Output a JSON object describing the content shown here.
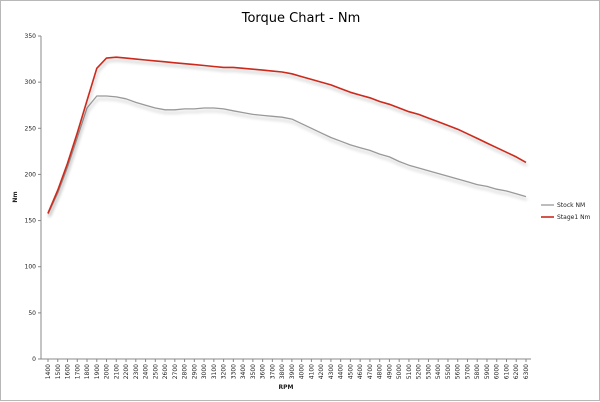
{
  "chart_data": {
    "type": "line",
    "title": "Torque Chart - Nm",
    "xlabel": "RPM",
    "ylabel": "Nm",
    "ylim": [
      0,
      350
    ],
    "yticks": [
      0,
      50,
      100,
      150,
      200,
      250,
      300,
      350
    ],
    "grid": false,
    "legend": "right",
    "x": [
      1400,
      1500,
      1600,
      1700,
      1800,
      1900,
      2000,
      2100,
      2200,
      2300,
      2400,
      2500,
      2600,
      2700,
      2800,
      2900,
      3000,
      3100,
      3200,
      3300,
      3400,
      3500,
      3600,
      3700,
      3800,
      3900,
      4000,
      4100,
      4200,
      4300,
      4400,
      4500,
      4600,
      4700,
      4800,
      4900,
      5000,
      5100,
      5200,
      5300,
      5400,
      5500,
      5600,
      5700,
      5800,
      5900,
      6000,
      6100,
      6200,
      6300
    ],
    "series": [
      {
        "name": "Stock NM",
        "color": "#999999",
        "values": [
          157,
          180,
          208,
          240,
          272,
          285,
          285,
          284,
          282,
          278,
          275,
          272,
          270,
          270,
          271,
          271,
          272,
          272,
          271,
          269,
          267,
          265,
          264,
          263,
          262,
          260,
          255,
          250,
          245,
          240,
          236,
          232,
          229,
          226,
          222,
          219,
          214,
          210,
          207,
          204,
          201,
          198,
          195,
          192,
          189,
          187,
          184,
          182,
          179,
          176
        ]
      },
      {
        "name": "Stage1 Nm",
        "color": "#cc2a1c",
        "values": [
          158,
          183,
          212,
          245,
          280,
          315,
          326,
          327,
          326,
          325,
          324,
          323,
          322,
          321,
          320,
          319,
          318,
          317,
          316,
          316,
          315,
          314,
          313,
          312,
          311,
          309,
          306,
          303,
          300,
          297,
          293,
          289,
          286,
          283,
          279,
          276,
          272,
          268,
          265,
          261,
          257,
          253,
          249,
          244,
          239,
          234,
          229,
          224,
          219,
          213
        ]
      }
    ]
  }
}
